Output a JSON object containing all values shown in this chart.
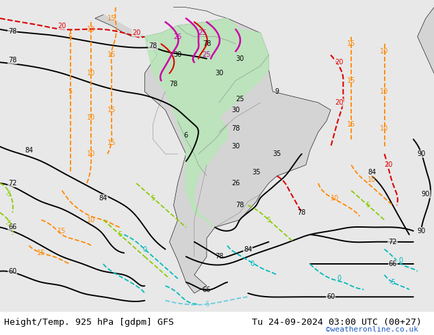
{
  "title_left": "Height/Temp. 925 hPa [gdpm] GFS",
  "title_right": "Tu 24-09-2024 03:00 UTC (00+27)",
  "credit": "©weatheronline.co.uk",
  "bg_color": "#e0e0e0",
  "land_color": "#d4d4d4",
  "sea_color": "#e8e8e8",
  "green_color": "#b8e6b8",
  "white_bar": "#ffffff",
  "label_color": "#000000",
  "credit_color": "#1e5bbf",
  "fig_width": 6.34,
  "fig_height": 4.9,
  "dpi": 100,
  "lon_min": -115,
  "lon_max": -10,
  "lat_min": -65,
  "lat_max": 20
}
